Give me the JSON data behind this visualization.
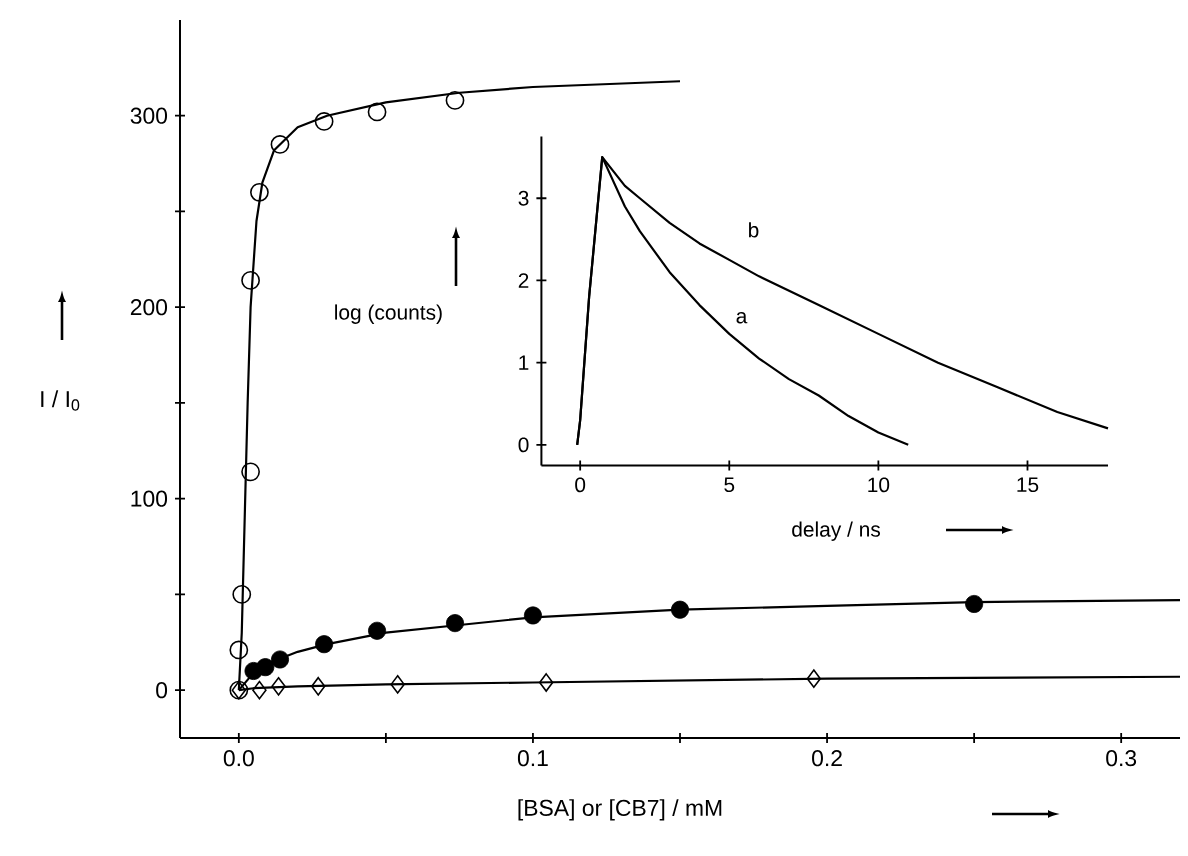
{
  "chart_data": [
    {
      "type": "scatter",
      "xlabel": "[BSA] or [CB7] / mM",
      "ylabel": "I / I$_{0}$",
      "xlim": [
        -0.02,
        0.32
      ],
      "ylim": [
        -25,
        350
      ],
      "xticks": [
        {
          "value": 0,
          "label": "0.0"
        },
        {
          "value": 0.05,
          "label": null
        },
        {
          "value": 0.1,
          "label": "0.1"
        },
        {
          "value": 0.15,
          "label": null
        },
        {
          "value": 0.2,
          "label": "0.2"
        },
        {
          "value": 0.25,
          "label": null
        },
        {
          "value": 0.3,
          "label": "0.3"
        }
      ],
      "yticks": [
        0,
        {
          "value": 50,
          "label": null
        },
        100,
        {
          "value": 150,
          "label": null
        },
        200,
        {
          "value": 250,
          "label": null
        },
        300
      ],
      "grid": false,
      "series": [
        {
          "type": "line",
          "marker": "none",
          "color": "#000000",
          "x": [
            0,
            0.001,
            0.002,
            0.003,
            0.004,
            0.006,
            0.008,
            0.012,
            0.02,
            0.03,
            0.05,
            0.075,
            0.1,
            0.15
          ],
          "values": [
            0,
            30,
            90,
            150,
            200,
            245,
            265,
            282,
            294,
            300,
            307,
            312,
            315,
            318
          ]
        },
        {
          "type": "line",
          "marker": "none",
          "color": "#000000",
          "x": [
            0,
            0.005,
            0.01,
            0.02,
            0.03,
            0.05,
            0.075,
            0.1,
            0.15,
            0.2,
            0.25,
            0.32
          ],
          "values": [
            0,
            9,
            14,
            20,
            24,
            30,
            34,
            38,
            42,
            44,
            46,
            47
          ]
        },
        {
          "type": "line",
          "marker": "none",
          "color": "#000000",
          "x": [
            0,
            0.005,
            0.02,
            0.05,
            0.1,
            0.2,
            0.32
          ],
          "values": [
            0,
            1,
            2,
            3,
            4,
            6,
            7
          ]
        },
        {
          "type": "scatter",
          "marker": "circle",
          "color": "#000000",
          "x": [
            0,
            0,
            0.001,
            0.004,
            0.004,
            0.007,
            0.014,
            0.029,
            0.047,
            0.0735
          ],
          "values": [
            0,
            21,
            50,
            114,
            214,
            260,
            285,
            297,
            302,
            308
          ]
        },
        {
          "type": "scatter",
          "marker": "filled circle",
          "color": "#000000",
          "x": [
            0.005,
            0.009,
            0.014,
            0.029,
            0.047,
            0.0735,
            0.1,
            0.15,
            0.25
          ],
          "values": [
            10,
            12,
            16,
            24,
            31,
            35,
            39,
            42,
            45
          ]
        },
        {
          "type": "scatter",
          "marker": "diamond",
          "color": "#000000",
          "x": [
            0,
            0.007,
            0.0135,
            0.027,
            0.054,
            0.1045,
            0.1955
          ],
          "values": [
            0,
            0,
            2,
            2,
            3,
            4,
            6
          ]
        }
      ]
    },
    {
      "type": "line",
      "xlabel": "delay / ns",
      "ylabel": "log (counts)",
      "xlim": [
        -1.3,
        17.7
      ],
      "ylim": [
        -0.25,
        3.75
      ],
      "xticks": [
        0,
        5,
        10,
        15
      ],
      "yticks": [
        0,
        1,
        2,
        3
      ],
      "grid": false,
      "marker": "none",
      "series": [
        {
          "name": "a",
          "color": "#000000",
          "x": [
            -0.1,
            0,
            0.3,
            0.74,
            1.5,
            2,
            3,
            4,
            5,
            6,
            7,
            8,
            9,
            10,
            11
          ],
          "values": [
            0,
            0.3,
            1.8,
            3.5,
            2.9,
            2.6,
            2.1,
            1.7,
            1.35,
            1.05,
            0.8,
            0.6,
            0.35,
            0.15,
            0
          ]
        },
        {
          "name": "b",
          "color": "#000000",
          "x": [
            -0.1,
            0,
            0.3,
            0.74,
            1.5,
            2,
            3,
            4,
            5,
            6,
            8,
            10,
            12,
            14,
            16,
            17.7
          ],
          "values": [
            0,
            0.3,
            1.8,
            3.5,
            3.15,
            3.0,
            2.7,
            2.45,
            2.25,
            2.05,
            1.7,
            1.35,
            1.0,
            0.7,
            0.4,
            0.2
          ]
        }
      ]
    }
  ]
}
